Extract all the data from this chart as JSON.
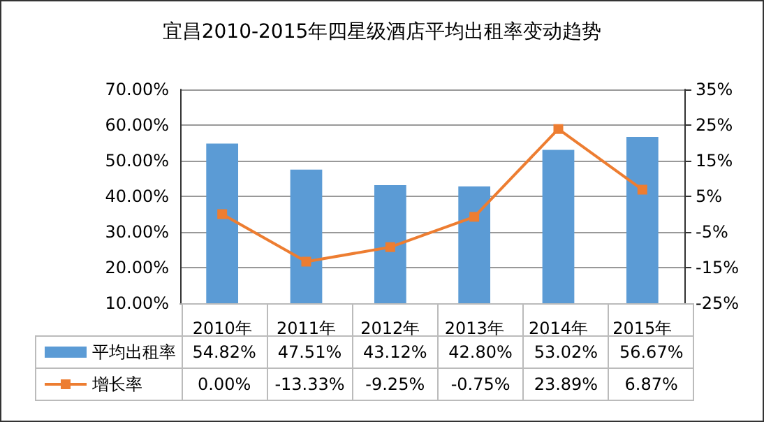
{
  "chart_data": {
    "type": "bar",
    "title": "宜昌2010-2015年四星级酒店平均出租率变动趋势",
    "categories": [
      "2010年",
      "2011年",
      "2012年",
      "2013年",
      "2014年",
      "2015年"
    ],
    "series": [
      {
        "name": "平均出租率",
        "color": "#5b9bd5",
        "values": [
          54.82,
          47.51,
          43.12,
          42.8,
          53.02,
          56.67
        ],
        "value_labels": [
          "54.82%",
          "47.51%",
          "43.12%",
          "42.80%",
          "53.02%",
          "56.67%"
        ]
      },
      {
        "name": "增长率",
        "type": "line",
        "axis": "y2",
        "color": "#ed7d31",
        "marker": "square",
        "values": [
          0.0,
          -13.33,
          -9.25,
          -0.75,
          23.89,
          6.87
        ],
        "value_labels": [
          "0.00%",
          "-13.33%",
          "-9.25%",
          "-0.75%",
          "23.89%",
          "6.87%"
        ]
      }
    ],
    "ylim": [
      10,
      70
    ],
    "yticks": [
      {
        "value": 10,
        "label": "10.00%"
      },
      {
        "value": 20,
        "label": "20.00%"
      },
      {
        "value": 30,
        "label": "30.00%"
      },
      {
        "value": 40,
        "label": "40.00%"
      },
      {
        "value": 50,
        "label": "50.00%"
      },
      {
        "value": 60,
        "label": "60.00%"
      },
      {
        "value": 70,
        "label": "70.00%"
      }
    ],
    "y2lim": [
      -25,
      35
    ],
    "y2ticks": [
      {
        "value": -25,
        "label": "-25%"
      },
      {
        "value": -15,
        "label": "-15%"
      },
      {
        "value": -5,
        "label": "-5%"
      },
      {
        "value": 5,
        "label": "5%"
      },
      {
        "value": 15,
        "label": "15%"
      },
      {
        "value": 25,
        "label": "25%"
      },
      {
        "value": 35,
        "label": "35%"
      }
    ],
    "grid": "y",
    "legend": "bottom"
  }
}
